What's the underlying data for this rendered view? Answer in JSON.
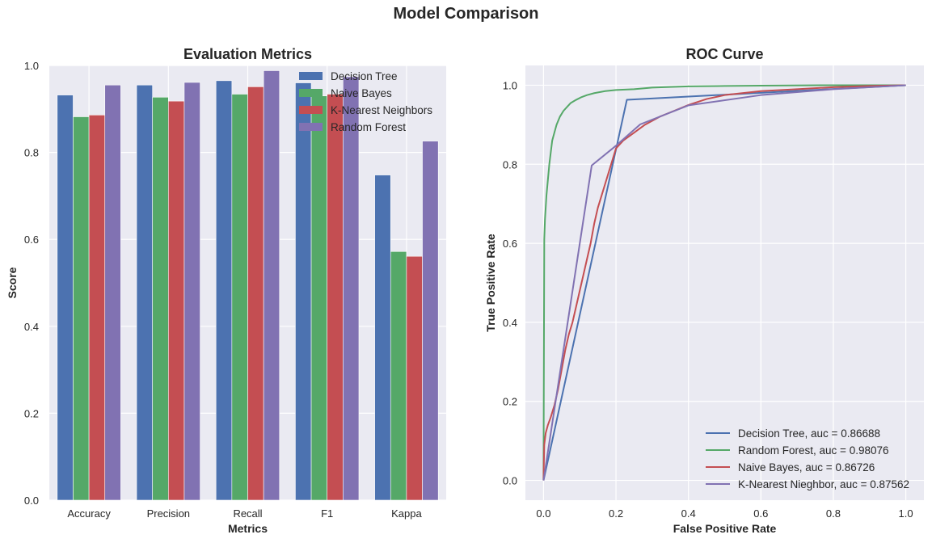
{
  "figure": {
    "title": "Model Comparison"
  },
  "colors": {
    "blue": "#4c72b0",
    "green": "#55a868",
    "red": "#c44e52",
    "purple": "#8172b2",
    "axes_bg": "#eaeaf2",
    "grid": "#ffffff"
  },
  "chart_data": [
    {
      "type": "bar",
      "title": "Evaluation Metrics",
      "xlabel": "Metrics",
      "ylabel": "Score",
      "ylim": [
        0,
        1.0
      ],
      "yticks": [
        "0.0",
        "0.2",
        "0.4",
        "0.6",
        "0.8",
        "1.0"
      ],
      "categories": [
        "Accuracy",
        "Precision",
        "Recall",
        "F1",
        "Kappa"
      ],
      "legend_position": "top-right",
      "series": [
        {
          "name": "Decision Tree",
          "color": "#4c72b0",
          "values": [
            0.932,
            0.955,
            0.965,
            0.96,
            0.748
          ]
        },
        {
          "name": "Naive Bayes",
          "color": "#55a868",
          "values": [
            0.882,
            0.927,
            0.934,
            0.93,
            0.572
          ]
        },
        {
          "name": "K-Nearest Neighbors",
          "color": "#c44e52",
          "values": [
            0.886,
            0.918,
            0.951,
            0.934,
            0.561
          ]
        },
        {
          "name": "Random Forest",
          "color": "#8172b2",
          "values": [
            0.955,
            0.961,
            0.988,
            0.974,
            0.826
          ]
        }
      ]
    },
    {
      "type": "line",
      "title": "ROC Curve",
      "xlabel": "False Positive Rate",
      "ylabel": "True Positive Rate",
      "xlim": [
        -0.05,
        1.05
      ],
      "ylim": [
        -0.05,
        1.05
      ],
      "xticks": [
        "0.0",
        "0.2",
        "0.4",
        "0.6",
        "0.8",
        "1.0"
      ],
      "yticks": [
        "0.0",
        "0.2",
        "0.4",
        "0.6",
        "0.8",
        "1.0"
      ],
      "legend_position": "bottom-right",
      "series": [
        {
          "name": "Decision Tree, auc = 0.86688",
          "color": "#4c72b0",
          "x": [
            0,
            0.23,
            1.0
          ],
          "y": [
            0,
            0.963,
            1.0
          ]
        },
        {
          "name": "Random Forest, auc = 0.98076",
          "color": "#55a868",
          "x": [
            0,
            0.002,
            0.004,
            0.008,
            0.012,
            0.016,
            0.02,
            0.024,
            0.03,
            0.036,
            0.045,
            0.055,
            0.065,
            0.075,
            0.09,
            0.105,
            0.12,
            0.14,
            0.17,
            0.2,
            0.25,
            0.3,
            0.4,
            0.5,
            0.6,
            0.8,
            1.0
          ],
          "y": [
            0,
            0.61,
            0.66,
            0.72,
            0.76,
            0.8,
            0.83,
            0.86,
            0.88,
            0.9,
            0.92,
            0.935,
            0.945,
            0.955,
            0.963,
            0.97,
            0.975,
            0.98,
            0.985,
            0.988,
            0.99,
            0.994,
            0.997,
            0.998,
            0.999,
            1.0,
            1.0
          ]
        },
        {
          "name": "Naive Bayes, auc = 0.86726",
          "color": "#c44e52",
          "x": [
            0,
            0.002,
            0.006,
            0.012,
            0.02,
            0.03,
            0.04,
            0.05,
            0.06,
            0.07,
            0.08,
            0.09,
            0.1,
            0.11,
            0.12,
            0.13,
            0.14,
            0.15,
            0.16,
            0.17,
            0.18,
            0.19,
            0.2,
            0.22,
            0.25,
            0.28,
            0.32,
            0.36,
            0.4,
            0.45,
            0.5,
            0.6,
            0.7,
            0.8,
            0.9,
            1.0
          ],
          "y": [
            0,
            0.09,
            0.12,
            0.14,
            0.16,
            0.19,
            0.23,
            0.28,
            0.33,
            0.37,
            0.4,
            0.44,
            0.48,
            0.52,
            0.56,
            0.6,
            0.65,
            0.69,
            0.72,
            0.75,
            0.78,
            0.81,
            0.84,
            0.86,
            0.88,
            0.9,
            0.92,
            0.935,
            0.95,
            0.965,
            0.975,
            0.985,
            0.99,
            0.995,
            0.998,
            1.0
          ]
        },
        {
          "name": "K-Nearest Nieghbor, auc = 0.87562",
          "color": "#8172b2",
          "x": [
            0,
            0.133,
            0.2,
            0.267,
            0.4,
            0.6,
            0.8,
            1.0
          ],
          "y": [
            0,
            0.797,
            0.847,
            0.901,
            0.949,
            0.975,
            0.99,
            1.0
          ]
        }
      ]
    }
  ]
}
